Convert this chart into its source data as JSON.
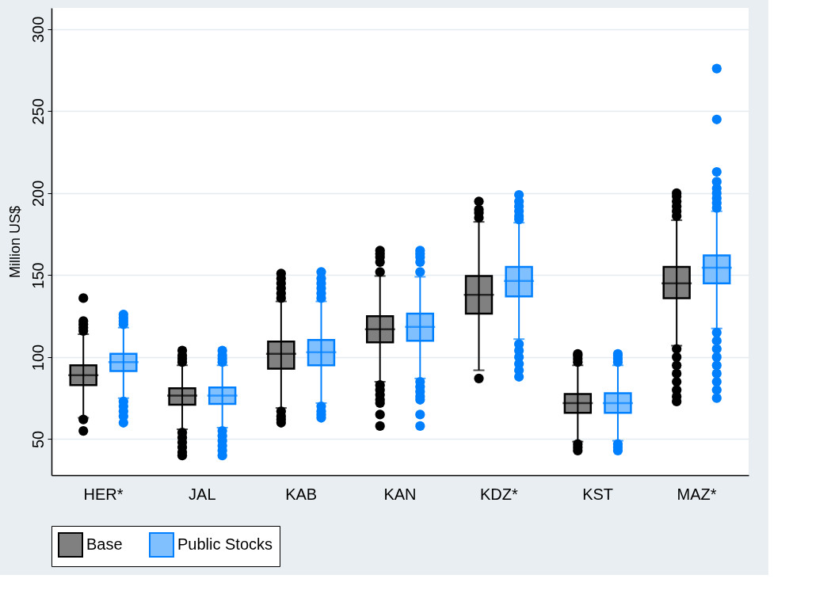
{
  "chart_data": {
    "type": "box",
    "ylabel": "Million US$",
    "categories": [
      "HER*",
      "JAL",
      "KAB",
      "KAN",
      "KDZ*",
      "KST",
      "MAZ*"
    ],
    "ylim": [
      28,
      313
    ],
    "yticks": [
      50,
      100,
      150,
      200,
      250,
      300
    ],
    "grid": "y",
    "legend": "bottom",
    "series": [
      {
        "name": "Base",
        "color": "#000000",
        "boxes": [
          {
            "low": 63,
            "q1": 83,
            "median": 89,
            "q3": 95,
            "high": 114,
            "outliers": [
              116,
              118,
              120,
              122,
              136,
              62,
              55
            ]
          },
          {
            "low": 56,
            "q1": 71,
            "median": 76.5,
            "q3": 81,
            "high": 95,
            "outliers": [
              97,
              99,
              101,
              104,
              54,
              51,
              48,
              45,
              42,
              40
            ]
          },
          {
            "low": 69,
            "q1": 93,
            "median": 102,
            "q3": 109.5,
            "high": 134,
            "outliers": [
              136,
              139,
              142,
              145,
              148,
              151,
              67,
              64,
              62,
              60
            ]
          },
          {
            "low": 85,
            "q1": 109,
            "median": 117,
            "q3": 125,
            "high": 149.5,
            "outliers": [
              152,
              158,
              161,
              163,
              165,
              83,
              80,
              77,
              74,
              72,
              65,
              58
            ]
          },
          {
            "low": 92,
            "q1": 126.5,
            "median": 138,
            "q3": 149.5,
            "high": 182.5,
            "outliers": [
              185,
              188,
              190,
              195,
              87
            ]
          },
          {
            "low": 48.5,
            "q1": 66,
            "median": 72,
            "q3": 77.5,
            "high": 95,
            "outliers": [
              97,
              99,
              101,
              102,
              47,
              45,
              43
            ]
          },
          {
            "low": 107,
            "q1": 136,
            "median": 145,
            "q3": 155,
            "high": 183.5,
            "outliers": [
              186,
              189,
              192,
              195,
              198,
              200,
              105,
              100,
              95,
              90,
              85,
              80,
              76,
              73
            ]
          }
        ]
      },
      {
        "name": "Public Stocks",
        "color": "#0080ff",
        "boxes": [
          {
            "low": 75,
            "q1": 91.5,
            "median": 97,
            "q3": 102,
            "high": 118,
            "outliers": [
              120,
              122,
              124,
              126,
              73,
              70,
              67,
              64,
              60
            ]
          },
          {
            "low": 57,
            "q1": 71.5,
            "median": 76.5,
            "q3": 81.5,
            "high": 95,
            "outliers": [
              97,
              99,
              101,
              104,
              55,
              52,
              49,
              46,
              43,
              40
            ]
          },
          {
            "low": 72,
            "q1": 95,
            "median": 103,
            "q3": 110.5,
            "high": 134,
            "outliers": [
              136,
              139,
              142,
              145,
              148,
              152,
              70,
              67,
              65,
              63
            ]
          },
          {
            "low": 87,
            "q1": 110,
            "median": 118.5,
            "q3": 126.5,
            "high": 149,
            "outliers": [
              152,
              158,
              161,
              163,
              165,
              85,
              82,
              79,
              76,
              74,
              65,
              58
            ]
          },
          {
            "low": 111,
            "q1": 137,
            "median": 146.5,
            "q3": 155,
            "high": 182,
            "outliers": [
              184,
              186,
              189,
              192,
              195,
              199,
              108,
              104,
              100,
              96,
              92,
              88
            ]
          },
          {
            "low": 49,
            "q1": 66,
            "median": 72,
            "q3": 78,
            "high": 95,
            "outliers": [
              97,
              99,
              101,
              102,
              47,
              45,
              43
            ]
          },
          {
            "low": 117.5,
            "q1": 145,
            "median": 154.5,
            "q3": 162,
            "high": 189,
            "outliers": [
              191,
              194,
              197,
              200,
              203,
              207,
              213,
              245,
              276,
              115,
              110,
              105,
              100,
              95,
              90,
              85,
              80,
              75
            ]
          }
        ]
      }
    ]
  }
}
